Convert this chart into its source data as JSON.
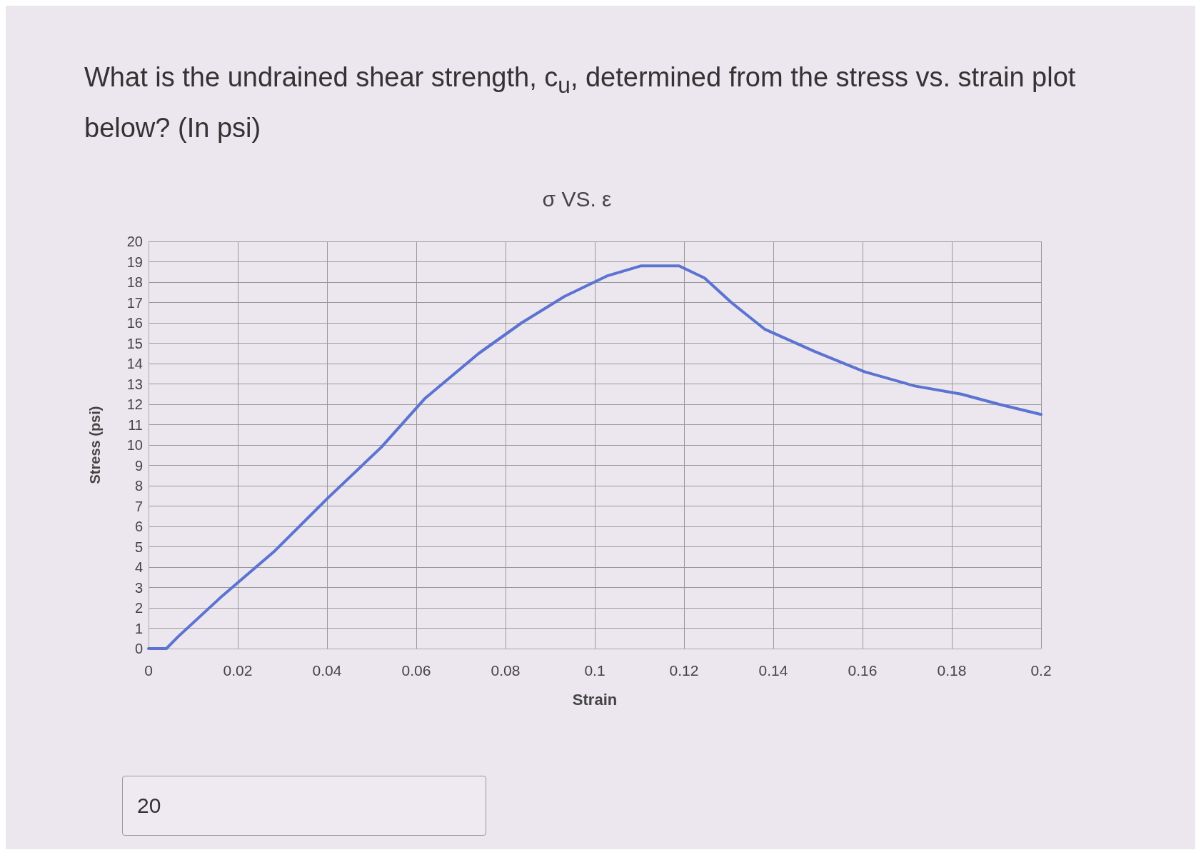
{
  "chart_data": {
    "type": "line",
    "title": "σ VS. ε",
    "xlabel": "Strain",
    "ylabel": "Stress (psi)",
    "annotations": [
      "What is the undrained shear strength, c$_{u}$, determined from the stress vs. strain plot below? (In psi)",
      "20"
    ],
    "xlim": [
      0,
      0.2
    ],
    "xticks": [
      0,
      0.02,
      0.04,
      0.06,
      0.08,
      0.1,
      0.12,
      0.14,
      0.16,
      0.18,
      0.2
    ],
    "ylim": [
      0,
      20
    ],
    "yticks": [
      0,
      1,
      2,
      3,
      4,
      5,
      6,
      7,
      8,
      9,
      10,
      11,
      12,
      13,
      14,
      15,
      16,
      17,
      18,
      19,
      20
    ],
    "grid": true,
    "marker": "none",
    "line_style": "solid",
    "series": [
      {
        "color": "#5b73d1",
        "x": [
          0,
          0.004,
          0.0067,
          0.0166,
          0.0283,
          0.0402,
          0.0522,
          0.062,
          0.074,
          0.0836,
          0.0932,
          0.1027,
          0.1104,
          0.1189,
          0.1246,
          0.1306,
          0.138,
          0.1492,
          0.1604,
          0.1717,
          0.1821,
          0.1906,
          0.2
        ],
        "values": [
          0,
          0,
          0.6,
          2.6,
          4.8,
          7.4,
          9.9,
          12.3,
          14.5,
          16,
          17.3,
          18.3,
          18.8,
          18.8,
          18.2,
          17,
          15.7,
          14.6,
          13.6,
          12.9,
          12.5,
          12,
          11.5
        ]
      }
    ]
  }
}
